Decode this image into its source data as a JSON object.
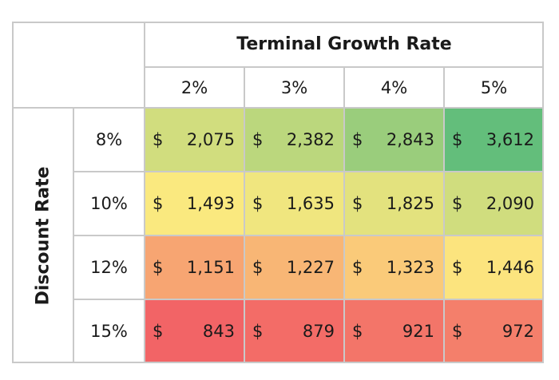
{
  "chart_data": {
    "type": "heatmap",
    "title": "",
    "x_title": "Terminal Growth Rate",
    "y_title": "Discount Rate",
    "x_labels": [
      "2%",
      "3%",
      "4%",
      "5%"
    ],
    "y_labels": [
      "8%",
      "10%",
      "12%",
      "15%"
    ],
    "currency_symbol": "$",
    "values": [
      [
        2075,
        2382,
        2843,
        3612
      ],
      [
        1493,
        1635,
        1825,
        2090
      ],
      [
        1151,
        1227,
        1323,
        1446
      ],
      [
        843,
        879,
        921,
        972
      ]
    ],
    "display_values": [
      [
        "2,075",
        "2,382",
        "2,843",
        "3,612"
      ],
      [
        "1,493",
        "1,635",
        "1,825",
        "2,090"
      ],
      [
        "1,151",
        "1,227",
        "1,323",
        "1,446"
      ],
      [
        "843",
        "879",
        "921",
        "972"
      ]
    ],
    "color_scale": {
      "low": "#f26466",
      "mid": "#fce97f",
      "high": "#63be7b"
    }
  }
}
